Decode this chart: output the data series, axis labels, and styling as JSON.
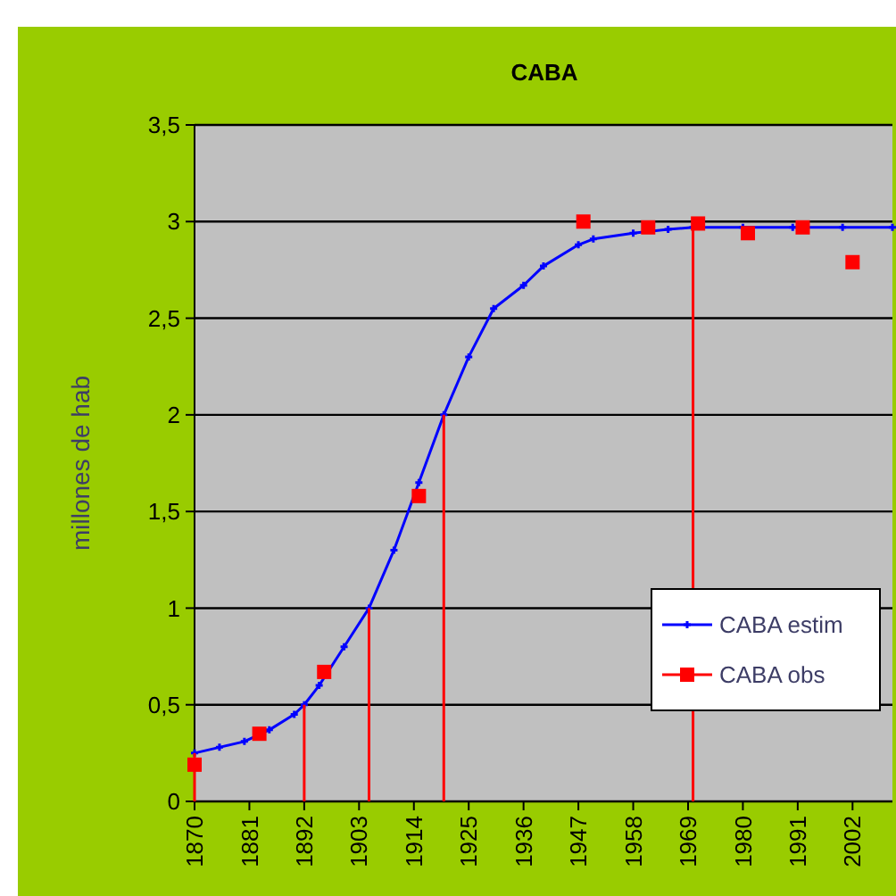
{
  "chart_data": {
    "type": "line",
    "title": "CABA",
    "ylabel": "millones de hab",
    "xlim": [
      1870,
      2010
    ],
    "xticks": [
      1870,
      1881,
      1892,
      1903,
      1914,
      1925,
      1936,
      1947,
      1958,
      1969,
      1980,
      1991,
      2002
    ],
    "ylim": [
      0,
      3.5
    ],
    "yticks": [
      0,
      {
        "value": 0.5,
        "label": "0,5"
      },
      1,
      {
        "value": 1.5,
        "label": "1,5"
      },
      2,
      {
        "value": 2.5,
        "label": "2,5"
      },
      3,
      {
        "value": 3.5,
        "label": "3,5"
      }
    ],
    "grid": "y",
    "legend": "bottom right",
    "series": [
      {
        "name": "CABA estim",
        "color": "#0000ff",
        "marker": "cross",
        "x": [
          1870,
          1875,
          1880,
          1885,
          1890,
          1892,
          1895,
          1900,
          1905,
          1910,
          1915,
          1920,
          1925,
          1930,
          1936,
          1940,
          1947,
          1950,
          1958,
          1965,
          1970,
          1980,
          1990,
          2000,
          2010
        ],
        "values": [
          0.25,
          0.28,
          0.31,
          0.37,
          0.45,
          0.5,
          0.6,
          0.8,
          1.0,
          1.3,
          1.65,
          2.0,
          2.3,
          2.55,
          2.67,
          2.77,
          2.88,
          2.91,
          2.94,
          2.96,
          2.97,
          2.97,
          2.97,
          2.97,
          2.97
        ]
      },
      {
        "name": "CABA obs",
        "type": "scatter",
        "color": "#ff0000",
        "marker": "square",
        "x": [
          1870,
          1883,
          1896,
          1915,
          1948,
          1961,
          1971,
          1981,
          1992,
          2002
        ],
        "values": [
          0.19,
          0.35,
          0.67,
          1.58,
          3.0,
          2.97,
          2.99,
          2.94,
          2.97,
          2.79
        ]
      },
      {
        "color": "#ff0000",
        "marker": "none",
        "x": [
          1870,
          1870
        ],
        "values": [
          0,
          0.25
        ]
      },
      {
        "color": "#ff0000",
        "marker": "none",
        "x": [
          1892,
          1892
        ],
        "values": [
          0,
          0.5
        ]
      },
      {
        "color": "#ff0000",
        "marker": "none",
        "x": [
          1905,
          1905
        ],
        "values": [
          0,
          1.0
        ]
      },
      {
        "color": "#ff0000",
        "marker": "none",
        "x": [
          1920,
          1920
        ],
        "values": [
          0,
          2.0
        ]
      },
      {
        "color": "#ff0000",
        "marker": "none",
        "x": [
          1970,
          1970
        ],
        "values": [
          0,
          2.97
        ]
      }
    ]
  }
}
